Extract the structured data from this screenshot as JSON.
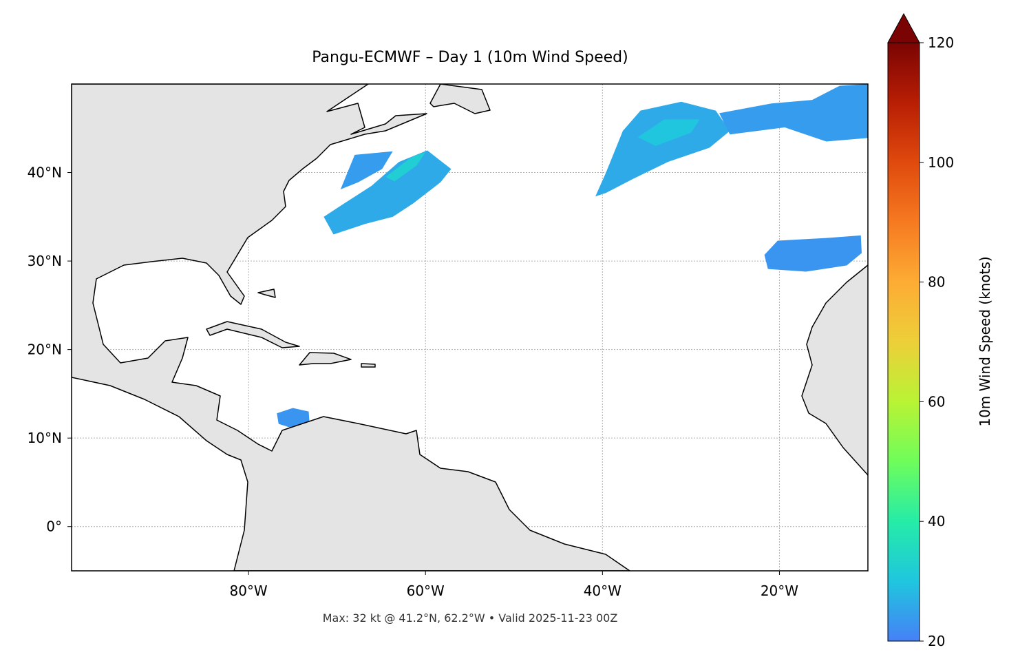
{
  "chart_data": {
    "type": "map",
    "title": "Pangu-ECMWF – Day 1 (10m Wind Speed)",
    "footer": "Max: 32 kt @ 41.2°N, 62.2°W • Valid 2025-11-23 00Z",
    "xlim": [
      -100,
      -10
    ],
    "ylim": [
      -5,
      50
    ],
    "xticks": [
      {
        "value": -80,
        "label": "80°W"
      },
      {
        "value": -60,
        "label": "60°W"
      },
      {
        "value": -40,
        "label": "40°W"
      },
      {
        "value": -20,
        "label": "20°W"
      }
    ],
    "yticks": [
      {
        "value": 0,
        "label": "0°"
      },
      {
        "value": 10,
        "label": "10°N"
      },
      {
        "value": 20,
        "label": "20°N"
      },
      {
        "value": 30,
        "label": "30°N"
      },
      {
        "value": 40,
        "label": "40°N"
      }
    ],
    "grid": true,
    "colorbar": {
      "label": "10m Wind Speed (knots)",
      "clim": [
        20,
        120
      ],
      "ticks": [
        20,
        40,
        60,
        80,
        100,
        120
      ],
      "extend": "max",
      "colormap": [
        "#4680f7",
        "#1fc6de",
        "#25eca7",
        "#6ffd5b",
        "#b9f334",
        "#edcf39",
        "#fdac34",
        "#f67a21",
        "#df4a0d",
        "#b81e04",
        "#7a0403"
      ]
    },
    "wind_areas": [
      {
        "speed": 26,
        "lon": [
          -71.5,
          -69.2,
          -66.1,
          -63.0,
          -59.8,
          -57.1,
          -58.3,
          -61.4,
          -63.7,
          -66.8,
          -70.4
        ],
        "lat": [
          35.0,
          36.5,
          38.5,
          41.2,
          42.5,
          40.4,
          38.9,
          36.5,
          35.0,
          34.2,
          33.0
        ]
      },
      {
        "speed": 24,
        "lon": [
          -69.6,
          -68.0,
          -63.7,
          -64.9,
          -67.6
        ],
        "lat": [
          38.1,
          42.0,
          42.4,
          40.4,
          38.9
        ]
      },
      {
        "speed": 32,
        "lon": [
          -64.5,
          -61.5,
          -60.0,
          -61.0,
          -63.5
        ],
        "lat": [
          39.5,
          41.8,
          42.3,
          40.8,
          39.0
        ]
      },
      {
        "speed": 26,
        "lon": [
          -40.8,
          -39.6,
          -37.7,
          -35.7,
          -31.1,
          -27.2,
          -25.6,
          -27.9,
          -32.6,
          -36.5,
          -39.6
        ],
        "lat": [
          37.3,
          40.0,
          44.7,
          47.0,
          48.0,
          47.0,
          44.7,
          42.8,
          41.2,
          39.3,
          37.7
        ]
      },
      {
        "speed": 30,
        "lon": [
          -36.0,
          -33.0,
          -29.0,
          -30.0,
          -34.0
        ],
        "lat": [
          44.0,
          46.0,
          46.0,
          44.5,
          43.0
        ]
      },
      {
        "speed": 24,
        "lon": [
          -26.8,
          -20.9,
          -16.3,
          -13.2,
          -10.0,
          -10.0,
          -14.7,
          -19.4,
          -25.6
        ],
        "lat": [
          46.7,
          47.8,
          48.2,
          49.8,
          50.0,
          43.9,
          43.5,
          45.1,
          44.3
        ]
      },
      {
        "speed": 23,
        "lon": [
          -21.7,
          -20.2,
          -14.7,
          -10.8,
          -10.7,
          -12.4,
          -17.0,
          -21.3
        ],
        "lat": [
          30.7,
          32.3,
          32.6,
          32.9,
          30.9,
          29.5,
          28.8,
          29.1
        ]
      },
      {
        "speed": 23,
        "lon": [
          -76.8,
          -75.0,
          -73.2,
          -73.1,
          -75.0,
          -76.6
        ],
        "lat": [
          12.8,
          13.4,
          13.0,
          11.6,
          11.1,
          11.6
        ]
      }
    ]
  }
}
